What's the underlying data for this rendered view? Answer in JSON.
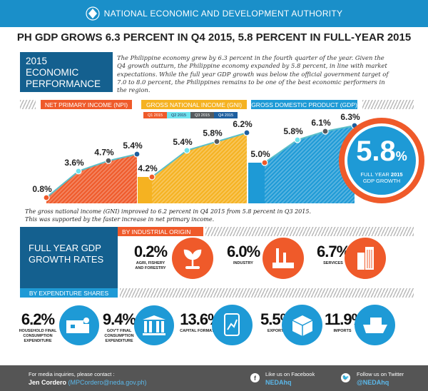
{
  "header": {
    "org": "NATIONAL ECONOMIC AND DEVELOPMENT AUTHORITY",
    "logo_icon": "neda-seal-icon"
  },
  "title": "PH GDP GROWS 6.3 PERCENT IN Q4 2015, 5.8 PERCENT IN FULL-YEAR 2015",
  "performance": {
    "heading_line1": "2015",
    "heading_line2": "ECONOMIC",
    "heading_line3": "PERFORMANCE",
    "text": "The Philippine economy grew by 6.3 percent in the fourth quarter of the year. Given the Q4 growth outturn, the Philippine economy expanded by 5.8 percent, in line with market expectations. While the full year GDP growth was below the official government target of 7.0 to 8.0 percent, the Philippines remains to be one of the best economic performers in the region."
  },
  "sections": {
    "npi": "NET PRIMARY INCOME (NPI)",
    "gni": "GROSS NATIONAL INCOME (GNI)",
    "gdp": "GROSS DOMESTIC PRODUCT (GDP)"
  },
  "legend": [
    {
      "label": "Q1 2015",
      "color": "#ef5a2a"
    },
    {
      "label": "Q2 2015",
      "color": "#6fe3ee"
    },
    {
      "label": "Q3 2015",
      "color": "#555a5e"
    },
    {
      "label": "Q4 2015",
      "color": "#1d5fa0"
    }
  ],
  "chart_data": [
    {
      "type": "area",
      "series": [
        {
          "name": "NET PRIMARY INCOME (NPI)",
          "values": [
            0.8,
            3.6,
            4.7,
            5.4
          ],
          "labels": [
            "0.8%",
            "3.6%",
            "4.7%",
            "5.4%"
          ],
          "color": "#ef5a2a"
        }
      ],
      "categories": [
        "Q1 2015",
        "Q2 2015",
        "Q3 2015",
        "Q4 2015"
      ]
    },
    {
      "type": "area",
      "series": [
        {
          "name": "GROSS NATIONAL INCOME (GNI)",
          "values": [
            4.2,
            5.4,
            5.8,
            6.2
          ],
          "labels": [
            "4.2%",
            "5.4%",
            "5.8%",
            "6.2%"
          ],
          "color": "#f5b221"
        }
      ],
      "categories": [
        "Q1 2015",
        "Q2 2015",
        "Q3 2015",
        "Q4 2015"
      ]
    },
    {
      "type": "area",
      "series": [
        {
          "name": "GROSS DOMESTIC PRODUCT (GDP)",
          "values": [
            5.0,
            5.8,
            6.1,
            6.3
          ],
          "labels": [
            "5.0%",
            "5.8%",
            "6.1%",
            "6.3%"
          ],
          "color": "#1e9ad6"
        }
      ],
      "categories": [
        "Q1 2015",
        "Q2 2015",
        "Q3 2015",
        "Q4 2015"
      ]
    }
  ],
  "full_year": {
    "value": "5.8",
    "unit": "%",
    "label1": "FULL YEAR ",
    "label_year": "2015",
    "label2": "GDP GROWTH"
  },
  "caption": "The gross national income (GNI) improved to 6.2 percent in Q4 2015 from 5.8 percent in Q3 2015. This was supported by the faster increase in net primary income.",
  "growth": {
    "heading1": "FULL YEAR GDP",
    "heading2": "GROWTH RATES",
    "industrial_label": "BY INDUSTRIAL ORIGIN",
    "expenditure_label": "BY EXPENDITURE SHARES",
    "industrial": [
      {
        "value": "0.2%",
        "label": "AGRI, FISHERY AND FORESTRY",
        "icon": "plant-icon"
      },
      {
        "value": "6.0%",
        "label": "INDUSTRY",
        "icon": "factory-icon"
      },
      {
        "value": "6.7%",
        "label": "SERVICES",
        "icon": "buildings-icon"
      }
    ],
    "expenditure": [
      {
        "value": "6.2%",
        "label": "HOUSEHOLD FINAL CONSUMPTION EXPENDITURE",
        "icon": "family-house-icon"
      },
      {
        "value": "9.4%",
        "label": "GOV'T FINAL CONSUMPTION EXPENDITURE",
        "icon": "government-building-icon"
      },
      {
        "value": "13.6%",
        "label": "CAPITAL FORMATION",
        "icon": "tablet-chart-icon"
      },
      {
        "value": "5.5%",
        "label": "EXPORTS",
        "icon": "box-icon"
      },
      {
        "value": "11.9%",
        "label": "IMPORTS",
        "icon": "cargo-ship-icon"
      }
    ]
  },
  "footer": {
    "inquiries": "For media inquiries, please contact :",
    "contact_name": "Jen Cordero",
    "contact_email": "(MPCordero@neda.gov.ph)",
    "fb_label": "Like us on Facebook",
    "fb_handle": "NEDAhq",
    "tw_label": "Follow us on Twitter",
    "tw_handle": "@NEDAhq"
  }
}
